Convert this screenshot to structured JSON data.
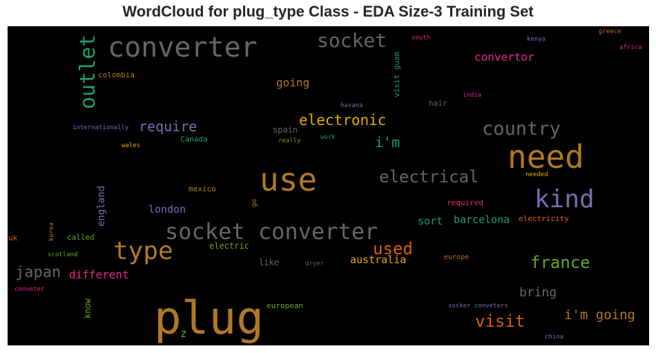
{
  "chart_data": {
    "type": "wordcloud",
    "title": "WordCloud for plug_type Class - EDA Size-3 Training Set",
    "background": "#000000",
    "words": [
      {
        "text": "plug",
        "size": 66,
        "color": "#b07a22"
      },
      {
        "text": "use",
        "size": 46,
        "color": "#b07a22"
      },
      {
        "text": "need",
        "size": 46,
        "color": "#b07a22"
      },
      {
        "text": "converter",
        "size": 40,
        "color": "#666666"
      },
      {
        "text": "type",
        "size": 36,
        "color": "#b07a22"
      },
      {
        "text": "kind",
        "size": 36,
        "color": "#7570b3"
      },
      {
        "text": "socket converter",
        "size": 32,
        "color": "#666666"
      },
      {
        "text": "outlet",
        "size": 30,
        "color": "#1b9e77"
      },
      {
        "text": "socket",
        "size": 28,
        "color": "#666666"
      },
      {
        "text": "country",
        "size": 27,
        "color": "#666666"
      },
      {
        "text": "electrical",
        "size": 24,
        "color": "#666666"
      },
      {
        "text": "used",
        "size": 24,
        "color": "#d95f02"
      },
      {
        "text": "france",
        "size": 24,
        "color": "#66a61e"
      },
      {
        "text": "visit",
        "size": 24,
        "color": "#d95f02"
      },
      {
        "text": "japan",
        "size": 22,
        "color": "#666666"
      },
      {
        "text": "electronic",
        "size": 21,
        "color": "#e6ab02"
      },
      {
        "text": "require",
        "size": 20,
        "color": "#7570b3"
      },
      {
        "text": "i'm",
        "size": 20,
        "color": "#1b9e77"
      },
      {
        "text": "i'm going",
        "size": 19,
        "color": "#b07a22"
      },
      {
        "text": "bring",
        "size": 18,
        "color": "#666666"
      },
      {
        "text": "convertor",
        "size": 16,
        "color": "#e7298a"
      },
      {
        "text": "going",
        "size": 16,
        "color": "#b07a22"
      },
      {
        "text": "different",
        "size": 16,
        "color": "#e7298a"
      },
      {
        "text": "australia",
        "size": 15,
        "color": "#e6ab02"
      },
      {
        "text": "london",
        "size": 15,
        "color": "#7570b3"
      },
      {
        "text": "barcelona",
        "size": 15,
        "color": "#1b9e77"
      },
      {
        "text": "sort",
        "size": 15,
        "color": "#1b9e77"
      },
      {
        "text": "england",
        "size": 14,
        "color": "#7570b3"
      },
      {
        "text": "z",
        "size": 16,
        "color": "#66a61e"
      },
      {
        "text": "spain",
        "size": 12,
        "color": "#666666"
      },
      {
        "text": "visit guam",
        "size": 11,
        "color": "#1b9e77"
      },
      {
        "text": "know",
        "size": 12,
        "color": "#66a61e"
      },
      {
        "text": "electric",
        "size": 12,
        "color": "#66a61e"
      },
      {
        "text": "like",
        "size": 12,
        "color": "#666666"
      },
      {
        "text": "european",
        "size": 11,
        "color": "#66a61e"
      },
      {
        "text": "electricity",
        "size": 11,
        "color": "#d95f02"
      },
      {
        "text": "called",
        "size": 11,
        "color": "#66a61e"
      },
      {
        "text": "Canada",
        "size": 11,
        "color": "#1b9e77"
      },
      {
        "text": "colombia",
        "size": 11,
        "color": "#b07a22"
      },
      {
        "text": "hair",
        "size": 11,
        "color": "#666666"
      },
      {
        "text": "mexico",
        "size": 11,
        "color": "#b07a22"
      },
      {
        "text": "required",
        "size": 11,
        "color": "#e7298a"
      },
      {
        "text": "europe",
        "size": 10,
        "color": "#b07a22"
      },
      {
        "text": "uk",
        "size": 11,
        "color": "#d95f02"
      },
      {
        "text": "go",
        "size": 10,
        "color": "#b07a22"
      },
      {
        "text": "internationally",
        "size": 9,
        "color": "#7570b3"
      },
      {
        "text": "wales",
        "size": 9,
        "color": "#e6ab02"
      },
      {
        "text": "really",
        "size": 9,
        "color": "#66a61e"
      },
      {
        "text": "work",
        "size": 9,
        "color": "#1b9e77"
      },
      {
        "text": "havana",
        "size": 9,
        "color": "#7570b3"
      },
      {
        "text": "india",
        "size": 9,
        "color": "#e7298a"
      },
      {
        "text": "needed",
        "size": 9,
        "color": "#e6ab02"
      },
      {
        "text": "scotland",
        "size": 9,
        "color": "#66a61e"
      },
      {
        "text": "korea",
        "size": 9,
        "color": "#b07a22"
      },
      {
        "text": "dryer",
        "size": 9,
        "color": "#666666"
      },
      {
        "text": "conveter",
        "size": 9,
        "color": "#e7298a"
      },
      {
        "text": "socker conveters",
        "size": 9,
        "color": "#7570b3"
      },
      {
        "text": "china",
        "size": 9,
        "color": "#7570b3"
      },
      {
        "text": "south",
        "size": 9,
        "color": "#e7298a"
      },
      {
        "text": "kenya",
        "size": 9,
        "color": "#7570b3"
      },
      {
        "text": "greece",
        "size": 9,
        "color": "#b07a22"
      },
      {
        "text": "africa",
        "size": 9,
        "color": "#e7298a"
      }
    ]
  }
}
